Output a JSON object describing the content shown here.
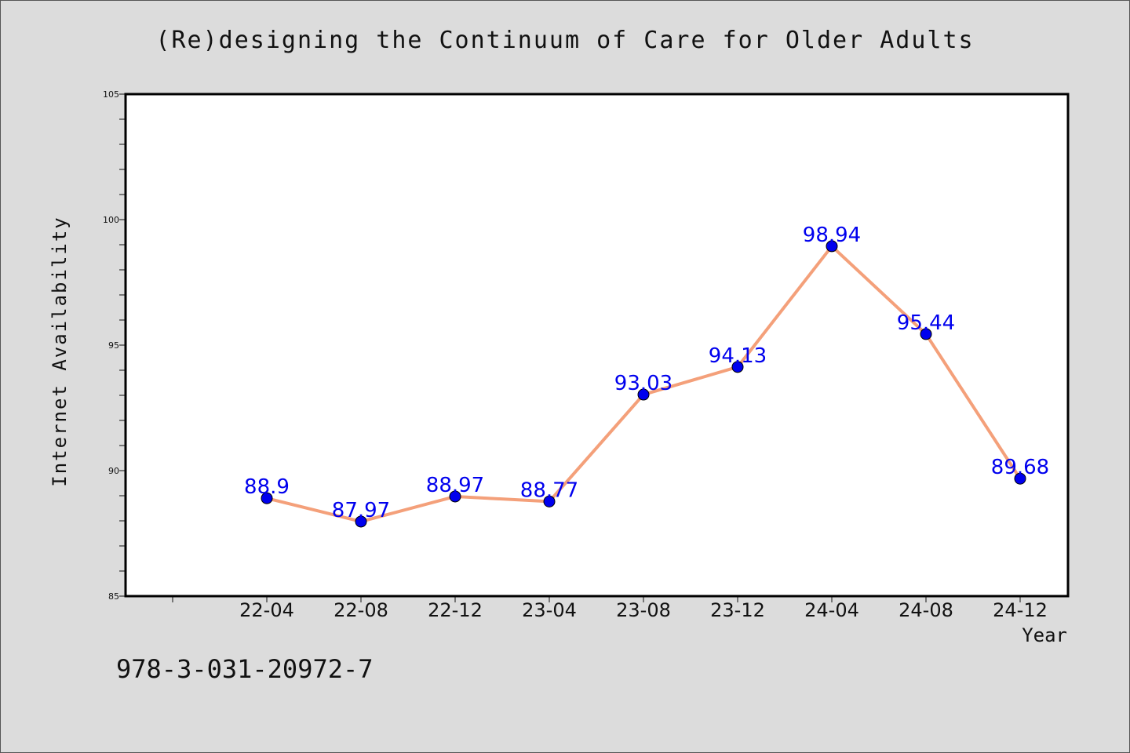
{
  "title": "(Re)designing the Continuum of Care for Older Adults",
  "footnote": "978-3-031-20972-7",
  "chart_data": {
    "type": "line",
    "title": "(Re)designing the Continuum of Care for Older Adults",
    "xlabel": "Year",
    "ylabel": "Internet Availability",
    "categories": [
      "22-04",
      "22-08",
      "22-12",
      "23-04",
      "23-08",
      "23-12",
      "24-04",
      "24-08",
      "24-12"
    ],
    "series": [
      {
        "values": [
          88.9,
          87.97,
          88.97,
          88.77,
          93.03,
          94.13,
          98.94,
          95.44,
          89.68
        ]
      }
    ],
    "data_labels": [
      "88.9",
      "87.97",
      "88.97",
      "88.77",
      "93.03",
      "94.13",
      "98.94",
      "95.44",
      "89.68"
    ],
    "ylim": [
      85,
      105
    ],
    "yticks": [
      85,
      90,
      95,
      100,
      105
    ],
    "grid": false,
    "colors": {
      "line": "#f4a07a",
      "marker": "#0000ee",
      "label": "#0000ee",
      "plot_bg": "#ffffff",
      "page_bg": "#dcdcdc"
    }
  }
}
